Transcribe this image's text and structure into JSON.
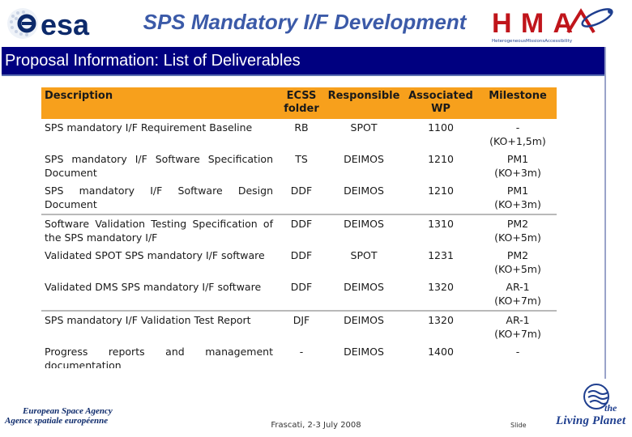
{
  "header": {
    "esa_wordmark": "esa",
    "title": "SPS Mandatory I/F Development",
    "hma_wordmark": "HMA",
    "hma_tagline": "HeterogeneousMissionsAccessibility"
  },
  "title_bar": {
    "text": "Proposal Information:  List of Deliverables"
  },
  "table": {
    "header_color": "#f7a01c",
    "columns": [
      "Description",
      "ECSS folder",
      "Responsible",
      "Associated WP",
      "Milestone"
    ],
    "rows": [
      {
        "description": "SPS mandatory I/F Requirement Baseline",
        "folder": "RB",
        "responsible": "SPOT",
        "wp": "1100",
        "milestone": "-\n(KO+1,5m)",
        "separator": false
      },
      {
        "description": "SPS mandatory I/F Software Specification Document",
        "folder": "TS",
        "responsible": "DEIMOS",
        "wp": "1210",
        "milestone": "PM1\n(KO+3m)",
        "separator": false
      },
      {
        "description": "SPS mandatory I/F Software Design Document",
        "folder": "DDF",
        "responsible": "DEIMOS",
        "wp": "1210",
        "milestone": "PM1\n(KO+3m)",
        "separator": false
      },
      {
        "description": "Software Validation Testing Specification of the SPS mandatory I/F",
        "folder": "DDF",
        "responsible": "DEIMOS",
        "wp": "1310",
        "milestone": "PM2\n(KO+5m)",
        "separator": true
      },
      {
        "description": "Validated SPOT SPS mandatory I/F software",
        "folder": "DDF",
        "responsible": "SPOT",
        "wp": "1231",
        "milestone": "PM2\n(KO+5m)",
        "separator": false
      },
      {
        "description": "Validated DMS SPS mandatory I/F software",
        "folder": "DDF",
        "responsible": "DEIMOS",
        "wp": "1320",
        "milestone": "AR-1\n(KO+7m)",
        "separator": false
      },
      {
        "description": "SPS mandatory I/F Validation Test Report",
        "folder": "DJF",
        "responsible": "DEIMOS",
        "wp": "1320",
        "milestone": "AR-1\n(KO+7m)",
        "separator": true
      },
      {
        "description": "Progress reports and management documentation",
        "folder": "-",
        "responsible": "DEIMOS",
        "wp": "1400",
        "milestone": "-",
        "separator": false
      }
    ]
  },
  "footer": {
    "agency_en": "European Space Agency",
    "agency_fr": "Agence spatiale européenne",
    "date": "Frascati, 2-3 July 2008",
    "slide_label": "Slide",
    "living_planet_1": "the",
    "living_planet_2": "Living Planet"
  }
}
